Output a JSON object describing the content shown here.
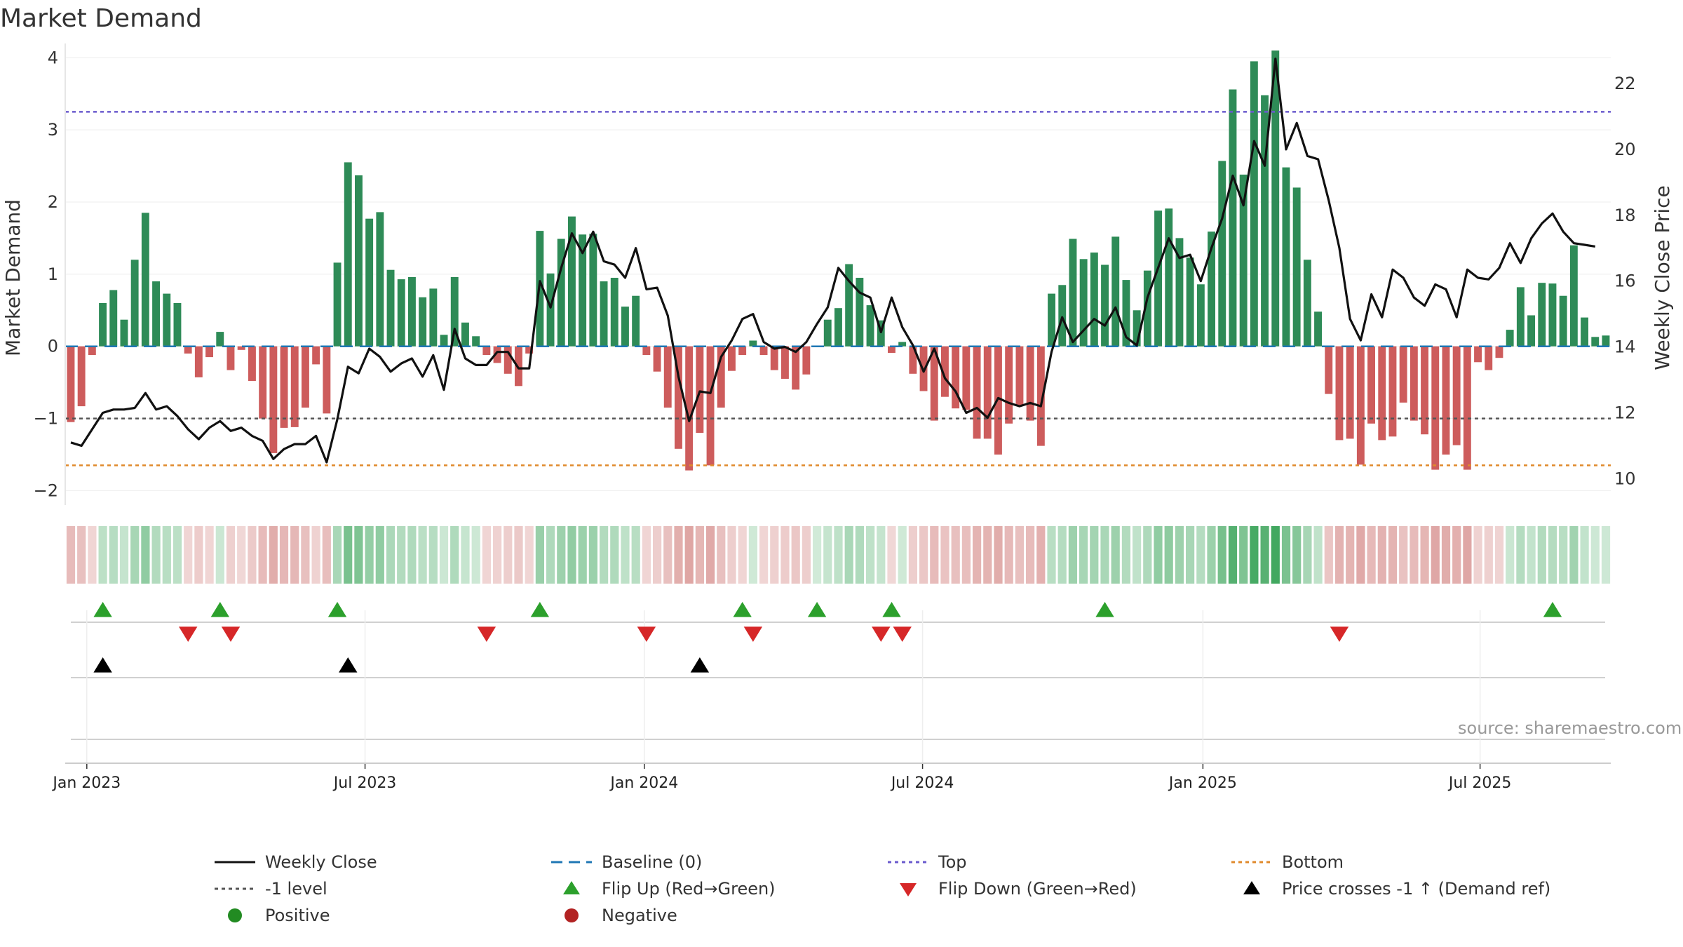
{
  "title": "Market Demand",
  "source": "source: sharemaestro.com",
  "colors": {
    "positive": "#2e8b57",
    "negative": "#cd5c5c",
    "flip_up": "#2ca02c",
    "flip_down": "#d62728",
    "cross": "#000000",
    "top_line": "#6a5acd",
    "bottom_line": "#e08a2c",
    "minus1_line": "#555555",
    "baseline": "#1f77b4",
    "price_line": "#111111"
  },
  "legend": [
    {
      "label": "Weekly Close",
      "symbol": "line-solid",
      "color": "#111111"
    },
    {
      "label": "Baseline (0)",
      "symbol": "line-dash",
      "color": "#1f77b4"
    },
    {
      "label": "Top",
      "symbol": "line-dot",
      "color": "#6a5acd"
    },
    {
      "label": "Bottom",
      "symbol": "line-dot",
      "color": "#e08a2c"
    },
    {
      "label": "-1 level",
      "symbol": "line-dot",
      "color": "#555555"
    },
    {
      "label": "Flip Up (Red→Green)",
      "symbol": "tri-up",
      "color": "#2ca02c"
    },
    {
      "label": "Flip Down (Green→Red)",
      "symbol": "tri-down",
      "color": "#d62728"
    },
    {
      "label": "Price crosses -1 ↑ (Demand ref)",
      "symbol": "tri-up",
      "color": "#000000"
    },
    {
      "label": "Positive",
      "symbol": "circle",
      "color": "#228b22"
    },
    {
      "label": "Negative",
      "symbol": "circle",
      "color": "#b22222"
    }
  ],
  "chart_data": {
    "type": "bar",
    "title": "Market Demand",
    "ylabel": "Market Demand",
    "y2label": "Weekly Close Price",
    "ylim": [
      -2.2,
      4.1
    ],
    "y2lim": [
      9.2,
      23.0
    ],
    "yticks": [
      -2,
      -1,
      0,
      1,
      2,
      3,
      4
    ],
    "y2ticks": [
      10,
      12,
      14,
      16,
      18,
      20,
      22
    ],
    "xticks": [
      "Jan 2023",
      "Jul 2023",
      "Jan 2024",
      "Jul 2024",
      "Jan 2025",
      "Jul 2025"
    ],
    "xtick_weeks": [
      1.5,
      27.6,
      53.8,
      79.9,
      106.2,
      132.2
    ],
    "start_week_label": "week 0 ≈ 2022-12-26",
    "levels": {
      "top": 3.25,
      "bottom": -1.65,
      "minus1": -1.0,
      "baseline": 0
    },
    "series": [
      {
        "name": "Market Demand",
        "values": [
          -1.05,
          -0.83,
          -0.12,
          0.6,
          0.78,
          0.37,
          1.2,
          1.85,
          0.9,
          0.73,
          0.6,
          -0.1,
          -0.43,
          -0.15,
          0.2,
          -0.33,
          -0.05,
          -0.48,
          -1.0,
          -1.48,
          -1.13,
          -1.12,
          -0.85,
          -0.25,
          -0.93,
          1.16,
          2.55,
          2.37,
          1.77,
          1.86,
          1.06,
          0.93,
          0.96,
          0.68,
          0.8,
          0.16,
          0.96,
          0.33,
          0.14,
          -0.12,
          -0.23,
          -0.38,
          -0.55,
          -0.1,
          1.6,
          1.01,
          1.49,
          1.8,
          1.55,
          1.56,
          0.9,
          0.95,
          0.55,
          0.7,
          -0.12,
          -0.35,
          -0.85,
          -1.42,
          -1.72,
          -1.2,
          -1.65,
          -0.85,
          -0.34,
          -0.12,
          0.08,
          -0.12,
          -0.33,
          -0.45,
          -0.6,
          -0.39,
          0.01,
          0.37,
          0.53,
          1.14,
          0.95,
          0.57,
          0.36,
          -0.09,
          0.06,
          -0.38,
          -0.62,
          -1.03,
          -0.7,
          -0.86,
          -0.88,
          -1.28,
          -1.28,
          -1.5,
          -1.07,
          -0.83,
          -1.03,
          -1.38,
          0.73,
          0.85,
          1.49,
          1.21,
          1.3,
          1.13,
          1.52,
          0.92,
          0.5,
          1.05,
          1.88,
          1.91,
          1.5,
          1.23,
          0.86,
          1.59,
          2.57,
          3.56,
          2.38,
          3.95,
          3.48,
          4.1,
          2.48,
          2.2,
          1.2,
          0.48,
          -0.66,
          -1.3,
          -1.28,
          -1.64,
          -1.07,
          -1.3,
          -1.25,
          -0.78,
          -1.03,
          -1.22,
          -1.71,
          -1.5,
          -1.37,
          -1.71,
          -0.22,
          -0.33,
          -0.16,
          0.23,
          0.82,
          0.43,
          0.88,
          0.87,
          0.7,
          1.4,
          0.4,
          0.13,
          0.15
        ]
      },
      {
        "name": "Weekly Close",
        "values": [
          11.1,
          11.0,
          11.5,
          12.0,
          12.1,
          12.1,
          12.15,
          12.6,
          12.1,
          12.2,
          11.9,
          11.5,
          11.2,
          11.55,
          11.75,
          11.45,
          11.55,
          11.3,
          11.15,
          10.6,
          10.9,
          11.05,
          11.05,
          11.3,
          10.5,
          11.8,
          13.4,
          13.2,
          13.95,
          13.7,
          13.25,
          13.5,
          13.65,
          13.1,
          13.75,
          12.7,
          14.55,
          13.65,
          13.45,
          13.45,
          13.85,
          13.85,
          13.35,
          13.35,
          16.0,
          15.2,
          16.4,
          17.45,
          16.85,
          17.5,
          16.6,
          16.5,
          16.1,
          17.0,
          15.75,
          15.8,
          14.95,
          13.1,
          11.75,
          12.65,
          12.6,
          13.7,
          14.2,
          14.85,
          15.0,
          14.15,
          13.95,
          14.0,
          13.85,
          14.15,
          14.7,
          15.2,
          16.4,
          16.0,
          15.65,
          15.5,
          14.45,
          15.5,
          14.6,
          14.05,
          13.25,
          13.95,
          13.05,
          12.65,
          12.0,
          12.15,
          11.85,
          12.45,
          12.3,
          12.2,
          12.3,
          12.2,
          13.85,
          14.9,
          14.15,
          14.5,
          14.85,
          14.65,
          15.2,
          14.3,
          14.05,
          15.5,
          16.4,
          17.3,
          16.7,
          16.8,
          16.0,
          17.0,
          17.9,
          19.2,
          18.3,
          20.25,
          19.5,
          22.75,
          20.0,
          20.8,
          19.8,
          19.7,
          18.45,
          17.0,
          14.85,
          14.2,
          15.6,
          14.9,
          16.35,
          16.1,
          15.5,
          15.25,
          15.9,
          15.75,
          14.9,
          16.35,
          16.1,
          16.05,
          16.4,
          17.15,
          16.55,
          17.3,
          17.75,
          18.05,
          17.5,
          17.15,
          17.1,
          17.05
        ]
      }
    ],
    "flip_up_weeks": [
      3,
      14,
      25,
      44,
      63,
      70,
      77,
      97,
      139
    ],
    "flip_down_weeks": [
      11,
      15,
      39,
      54,
      64,
      76,
      78,
      119
    ],
    "price_cross_weeks": [
      3,
      26,
      59
    ]
  }
}
